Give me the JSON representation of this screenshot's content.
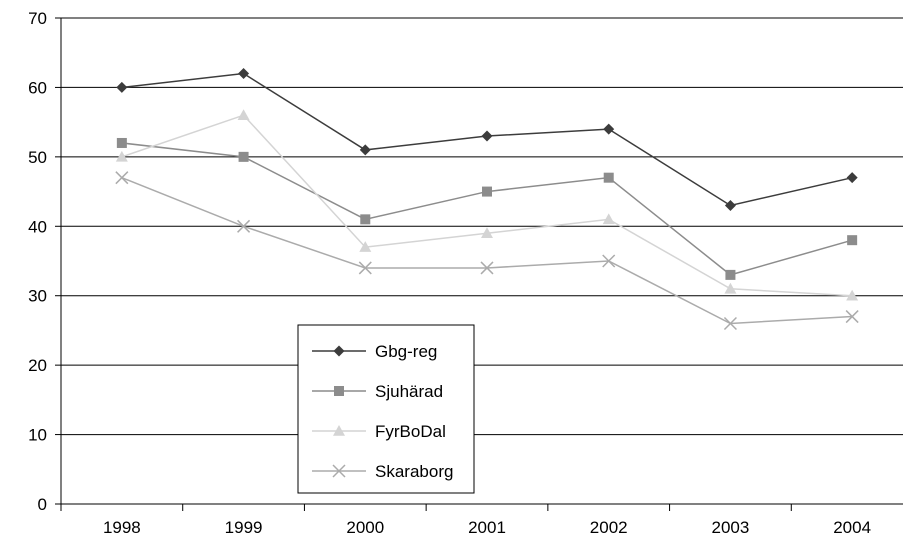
{
  "chart_data": {
    "type": "line",
    "title": "",
    "xlabel": "",
    "ylabel": "",
    "categories": [
      "1998",
      "1999",
      "2000",
      "2001",
      "2002",
      "2003",
      "2004"
    ],
    "ylim": [
      0,
      70
    ],
    "yticks": [
      0,
      10,
      20,
      30,
      40,
      50,
      60,
      70
    ],
    "grid": "horizontal",
    "legend_position": "lower-left-inside",
    "series": [
      {
        "name": "Gbg-reg",
        "values": [
          60,
          62,
          51,
          53,
          54,
          43,
          47
        ],
        "color": "#3c3c3c",
        "marker": "diamond"
      },
      {
        "name": "Sjuhärad",
        "values": [
          52,
          50,
          41,
          45,
          47,
          33,
          38
        ],
        "color": "#8c8c8c",
        "marker": "square"
      },
      {
        "name": "FyrBoDal",
        "values": [
          50,
          56,
          37,
          39,
          41,
          31,
          30
        ],
        "color": "#d4d4d4",
        "marker": "triangle"
      },
      {
        "name": "Skaraborg",
        "values": [
          47,
          40,
          34,
          34,
          35,
          26,
          27
        ],
        "color": "#ababab",
        "marker": "x"
      }
    ]
  }
}
